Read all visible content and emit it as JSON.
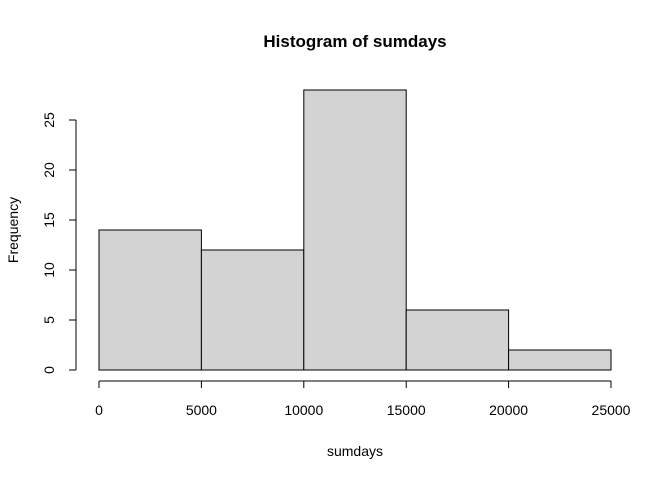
{
  "chart_data": {
    "type": "histogram",
    "title": "Histogram of sumdays",
    "xlabel": "sumdays",
    "ylabel": "Frequency",
    "bins": [
      {
        "from": 0,
        "to": 5000,
        "count": 14
      },
      {
        "from": 5000,
        "to": 10000,
        "count": 12
      },
      {
        "from": 10000,
        "to": 15000,
        "count": 28
      },
      {
        "from": 15000,
        "to": 20000,
        "count": 6
      },
      {
        "from": 20000,
        "to": 25000,
        "count": 2
      }
    ],
    "xlim": [
      0,
      25000
    ],
    "ylim": [
      0,
      28
    ],
    "x_ticks": [
      0,
      5000,
      10000,
      15000,
      20000,
      25000
    ],
    "y_ticks": [
      0,
      5,
      10,
      15,
      20,
      25
    ],
    "colors": {
      "bar_fill": "#d3d3d3",
      "bar_stroke": "#000000"
    },
    "grid": false
  }
}
